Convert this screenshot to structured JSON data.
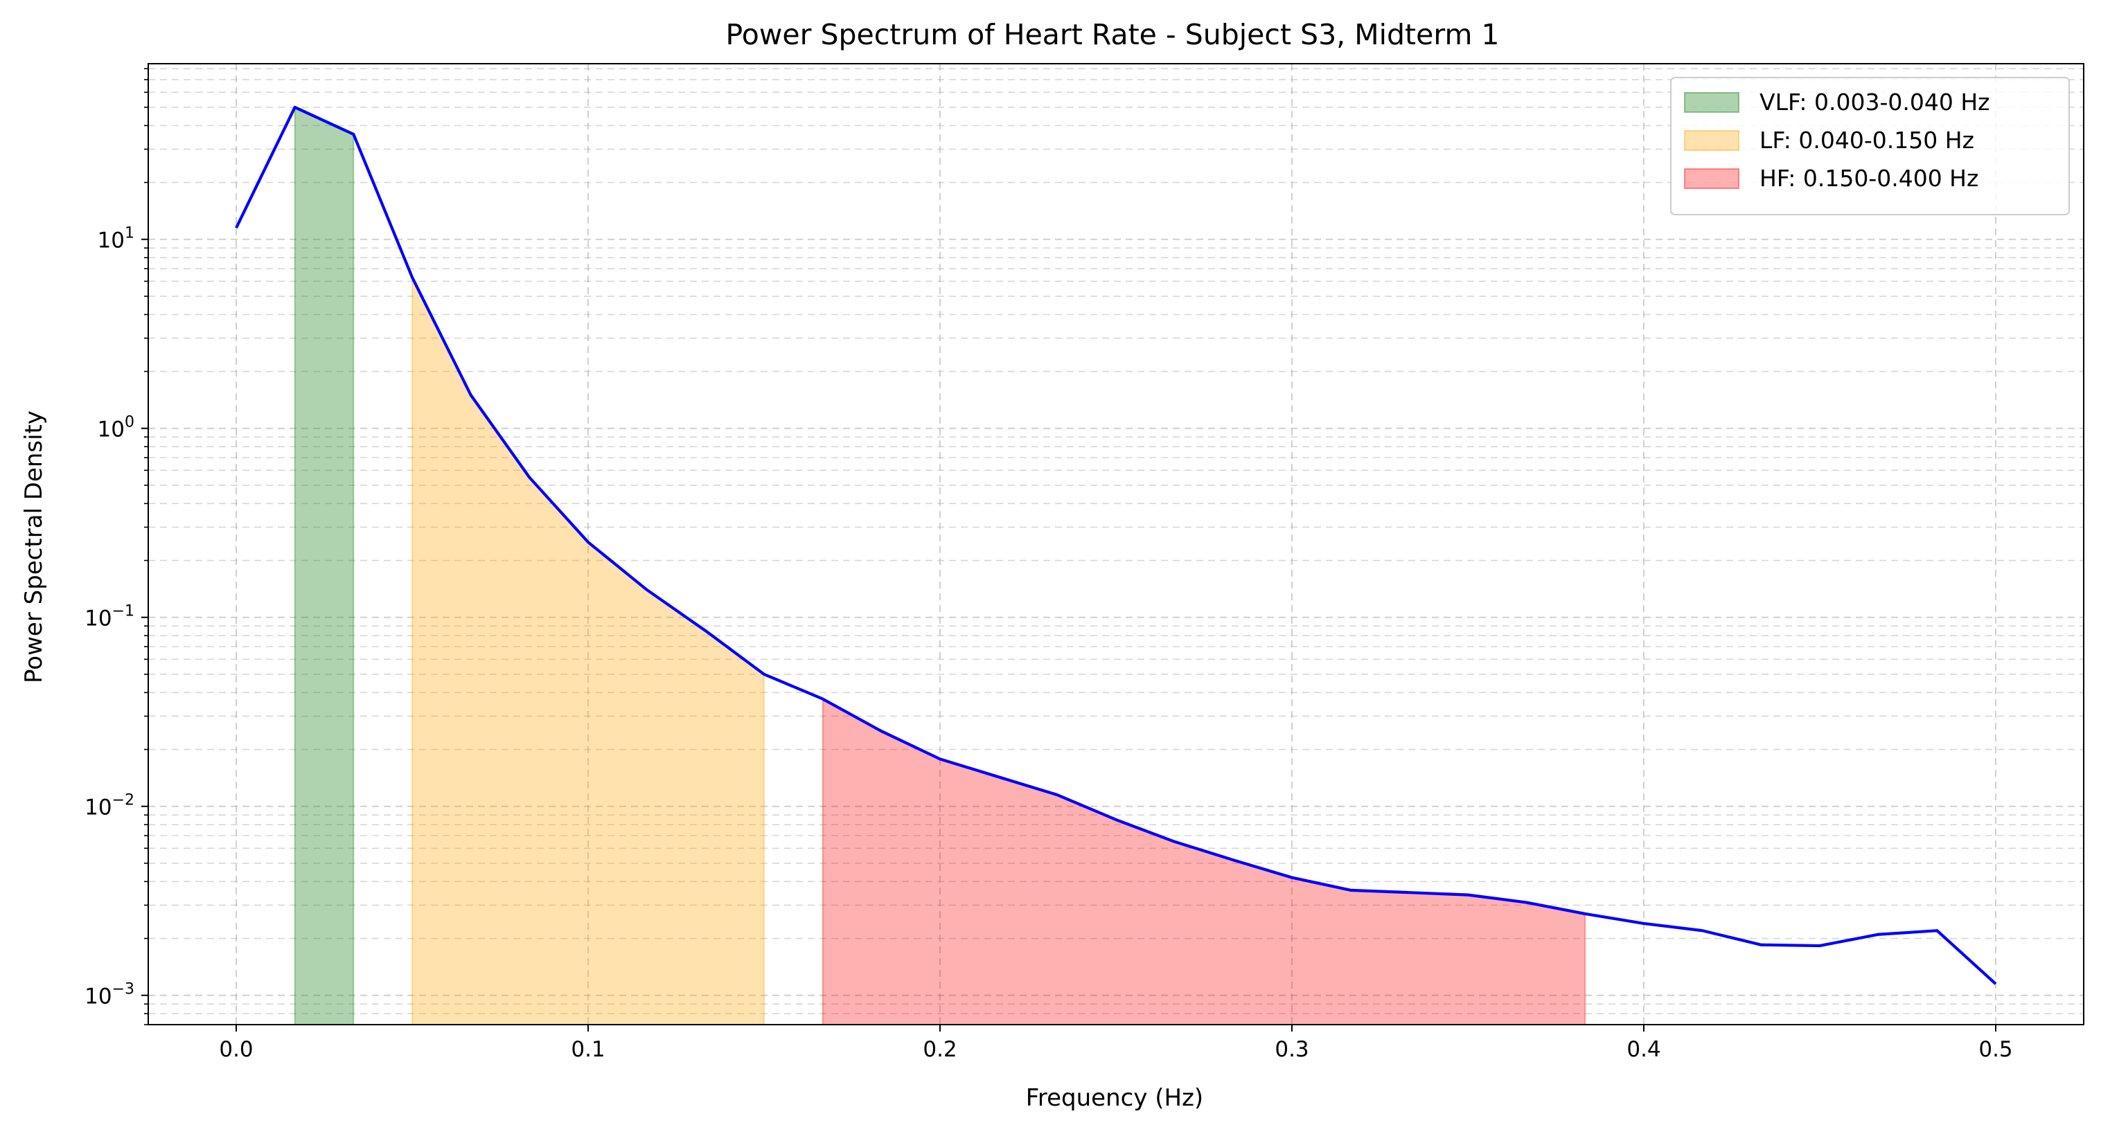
{
  "chart_data": {
    "type": "area",
    "title": "Power Spectrum of Heart Rate - Subject S3, Midterm 1",
    "xlabel": "Frequency (Hz)",
    "ylabel": "Power Spectral Density",
    "xlim": [
      -0.025,
      0.525
    ],
    "ylim": [
      0.0007,
      85
    ],
    "yscale": "log",
    "xticks": [
      0.0,
      0.1,
      0.2,
      0.3,
      0.4,
      0.5
    ],
    "xtick_labels": [
      "0.0",
      "0.1",
      "0.2",
      "0.3",
      "0.4",
      "0.5"
    ],
    "yticks": [
      0.001,
      0.01,
      0.1,
      1,
      10
    ],
    "ytick_labels": [
      {
        "base": "10",
        "exp": "−3"
      },
      {
        "base": "10",
        "exp": "−2"
      },
      {
        "base": "10",
        "exp": "−1"
      },
      {
        "base": "10",
        "exp": "0"
      },
      {
        "base": "10",
        "exp": "1"
      }
    ],
    "grid": true,
    "legend_position": "top-right",
    "series": [
      {
        "color": "#0000ff",
        "x": [
          0.0,
          0.01667,
          0.03333,
          0.05,
          0.06667,
          0.08333,
          0.1,
          0.11667,
          0.13333,
          0.15,
          0.16667,
          0.18333,
          0.2,
          0.21667,
          0.23333,
          0.25,
          0.26667,
          0.28333,
          0.3,
          0.31667,
          0.33333,
          0.35,
          0.36667,
          0.38333,
          0.4,
          0.41667,
          0.43333,
          0.45,
          0.46667,
          0.48333,
          0.5
        ],
        "y": [
          11.5,
          50,
          36,
          6.3,
          1.5,
          0.55,
          0.25,
          0.14,
          0.085,
          0.05,
          0.037,
          0.025,
          0.0178,
          0.0143,
          0.0115,
          0.0085,
          0.0065,
          0.0052,
          0.0042,
          0.0036,
          0.0035,
          0.0034,
          0.0031,
          0.0027,
          0.0024,
          0.0022,
          0.00185,
          0.00183,
          0.0021,
          0.0022,
          0.00115
        ]
      }
    ],
    "bands": [
      {
        "label": "VLF: 0.003-0.040 Hz",
        "x_start": 0.01667,
        "x_end": 0.03333,
        "color": "#2e8b2e",
        "opacity": 0.38,
        "edge": "#2e8b2e"
      },
      {
        "label": "LF: 0.040-0.150 Hz",
        "x_start": 0.05,
        "x_end": 0.15,
        "color": "#ffa500",
        "opacity": 0.32,
        "edge": "#ffa500"
      },
      {
        "label": "HF: 0.150-0.400 Hz",
        "x_start": 0.16667,
        "x_end": 0.38333,
        "color": "#ff0000",
        "opacity": 0.31,
        "edge": "#ff0000"
      }
    ]
  }
}
